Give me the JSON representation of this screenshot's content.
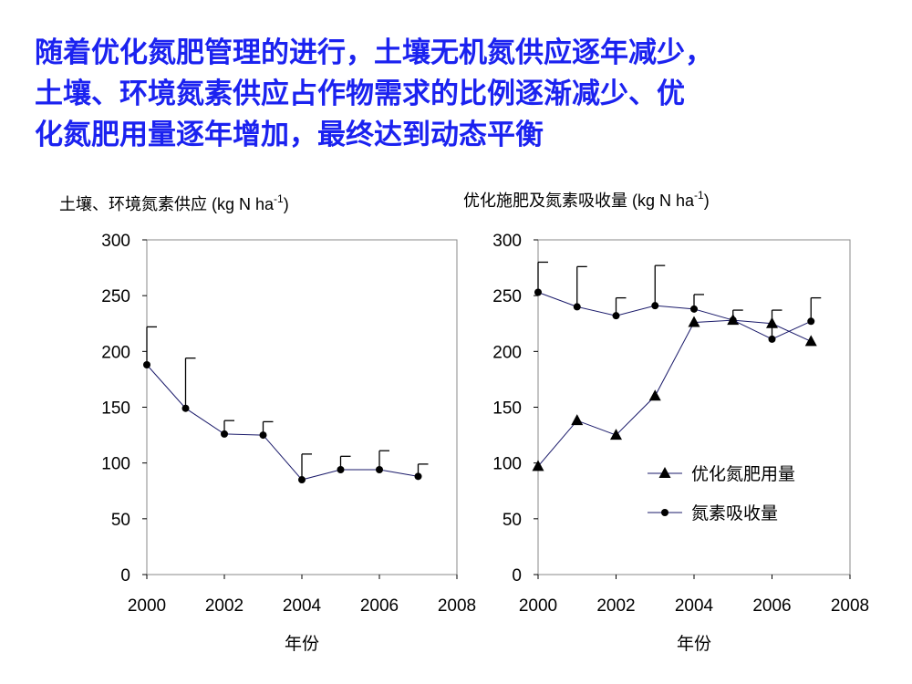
{
  "headline": {
    "line1": "随着优化氮肥管理的进行，土壤无机氮供应逐年减少，",
    "line2": "土壤、环境氮素供应占作物需求的比例逐渐减少、优",
    "line3": "化氮肥用量逐年增加，最终达到动态平衡",
    "color": "#1b22f0"
  },
  "chart_data": [
    {
      "type": "line",
      "ylabel_prefix": "土壤、环境氮素供应 (kg N ha",
      "ylabel_exp": "-1",
      "ylabel_suffix": ")",
      "xlabel": "年份",
      "xlim": [
        2000,
        2008
      ],
      "ylim": [
        0,
        300
      ],
      "xticks": [
        2000,
        2002,
        2004,
        2006,
        2008
      ],
      "yticks": [
        0,
        50,
        100,
        150,
        200,
        250,
        300
      ],
      "grid": false,
      "series": [
        {
          "marker": "circle",
          "x": [
            2000,
            2001,
            2002,
            2003,
            2004,
            2005,
            2006,
            2007
          ],
          "y": [
            188,
            149,
            126,
            125,
            85,
            94,
            94,
            88
          ],
          "error_plus": [
            34,
            45,
            12,
            12,
            23,
            12,
            17,
            11
          ]
        }
      ]
    },
    {
      "type": "line",
      "ylabel_prefix": "优化施肥及氮素吸收量 (kg N ha",
      "ylabel_exp": "-1",
      "ylabel_suffix": ")",
      "xlabel": "年份",
      "xlim": [
        2000,
        2008
      ],
      "ylim": [
        0,
        300
      ],
      "xticks": [
        2000,
        2002,
        2004,
        2006,
        2008
      ],
      "yticks": [
        0,
        50,
        100,
        150,
        200,
        250,
        300
      ],
      "grid": false,
      "legend_position": "lower-right",
      "series": [
        {
          "name": "优化氮肥用量",
          "marker": "triangle",
          "x": [
            2000,
            2001,
            2002,
            2003,
            2004,
            2005,
            2006,
            2007
          ],
          "y": [
            97,
            138,
            125,
            160,
            226,
            228,
            225,
            209
          ]
        },
        {
          "name": "氮素吸收量",
          "marker": "circle",
          "x": [
            2000,
            2001,
            2002,
            2003,
            2004,
            2005,
            2006,
            2007
          ],
          "y": [
            253,
            240,
            232,
            241,
            238,
            228,
            211,
            227
          ],
          "error_plus": [
            27,
            36,
            16,
            36,
            13,
            9,
            26,
            21
          ]
        }
      ]
    }
  ]
}
